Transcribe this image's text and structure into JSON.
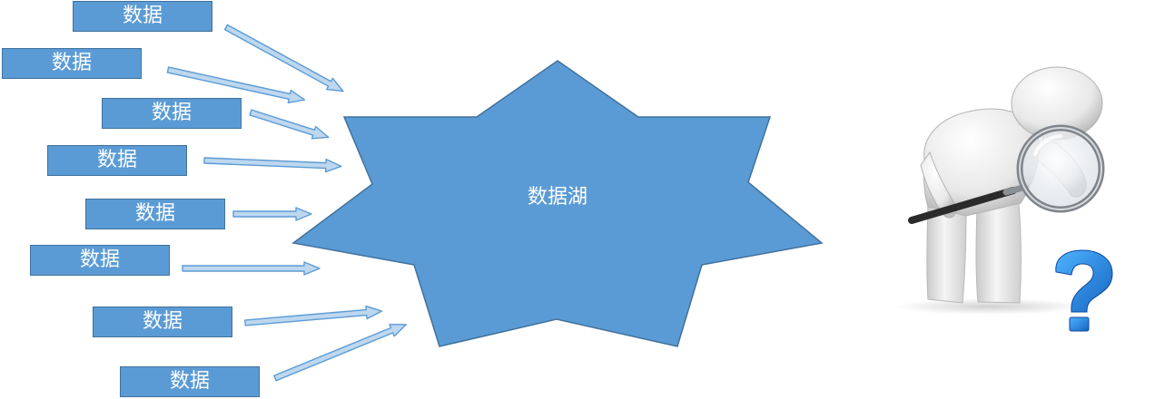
{
  "sources": [
    {
      "label": "数据"
    },
    {
      "label": "数据"
    },
    {
      "label": "数据"
    },
    {
      "label": "数据"
    },
    {
      "label": "数据"
    },
    {
      "label": "数据"
    },
    {
      "label": "数据"
    },
    {
      "label": "数据"
    }
  ],
  "lake": {
    "label": "数据湖"
  },
  "colors": {
    "box_fill": "#5b9bd5",
    "box_border": "#41719c",
    "arrow_fill": "#bdd7ee",
    "arrow_stroke": "#5b9bd5",
    "question_mark": "#1e88e5"
  },
  "illustration": {
    "figure": "3d-person-with-magnifying-glass",
    "icon": "question-mark-icon"
  }
}
